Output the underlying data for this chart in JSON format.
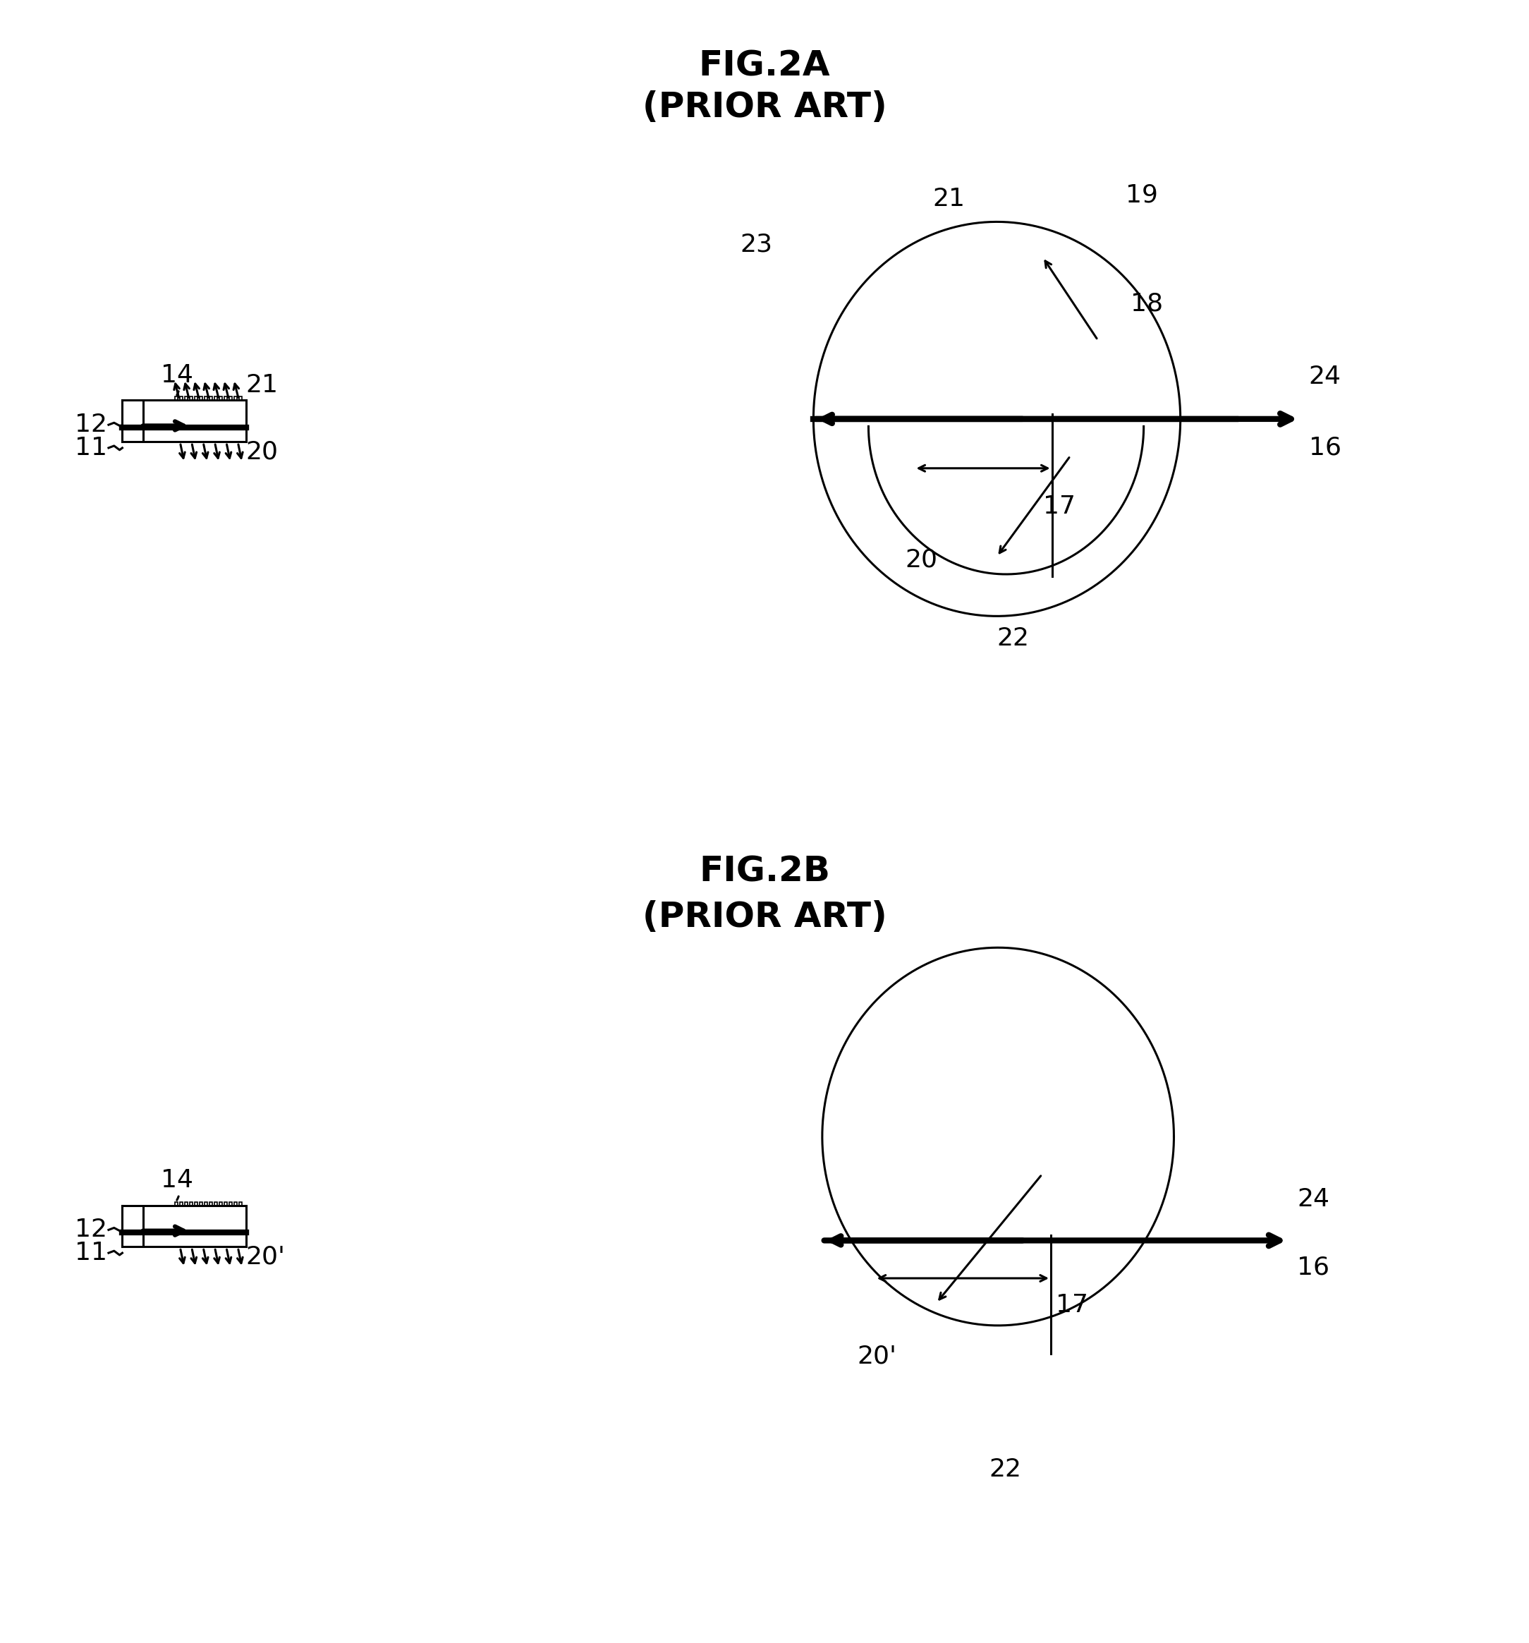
{
  "fig_title_2A": "FIG.2A",
  "fig_subtitle_2A": "(PRIOR ART)",
  "fig_title_2B": "FIG.2B",
  "fig_subtitle_2B": "(PRIOR ART)",
  "bg_color": "#ffffff",
  "line_color": "#000000",
  "title_fontsize": 36,
  "label_fontsize": 26,
  "lw": 2.2,
  "lw_thick": 6,
  "lw_medium": 3.5
}
